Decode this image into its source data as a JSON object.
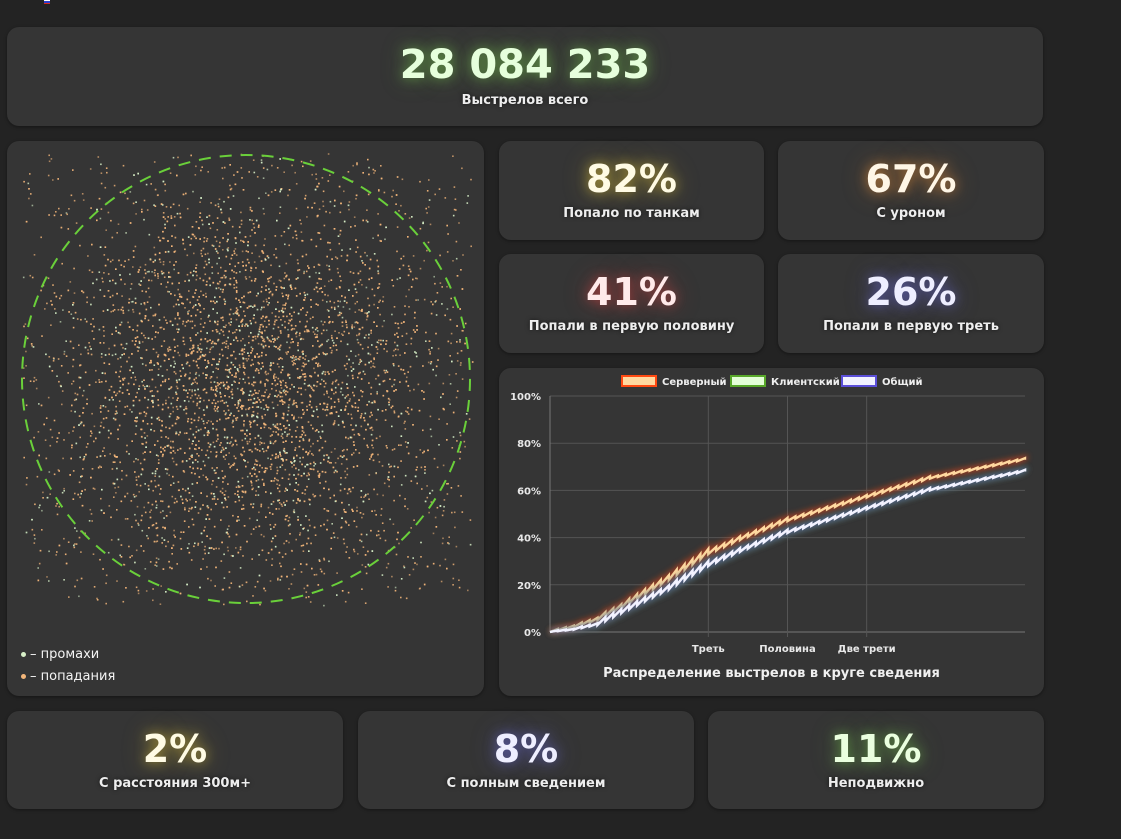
{
  "colors": {
    "background": "#232323",
    "card": "#353535",
    "circle": "#6ad03a",
    "miss": "#d8f0c8",
    "hit": "#f3b67a",
    "server_line": "#ffd9a0",
    "server_border": "#ff4a12",
    "client_line": "#e4ffd8",
    "client_border": "#58a82a",
    "total_line": "#f2f2ff",
    "total_border": "#5b4fd8"
  },
  "total": {
    "value": "28 084 233",
    "label": "Выстрелов всего"
  },
  "stats_top": [
    {
      "value": "82%",
      "label": "Попало по танкам",
      "glow": "yellow"
    },
    {
      "value": "67%",
      "label": "С уроном",
      "glow": "orange"
    },
    {
      "value": "41%",
      "label": "Попали в первую половину",
      "glow": "red"
    },
    {
      "value": "26%",
      "label": "Попали в первую треть",
      "glow": "blue"
    }
  ],
  "stats_bottom": [
    {
      "value": "2%",
      "label": "С расстояния 300м+",
      "glow": "yellow"
    },
    {
      "value": "8%",
      "label": "С полным сведением",
      "glow": "blue"
    },
    {
      "value": "11%",
      "label": "Неподвижно",
      "glow": "green"
    }
  ],
  "scatter": {
    "legend": [
      {
        "label": "– промахи",
        "kind": "miss"
      },
      {
        "label": "– попадания",
        "kind": "hit"
      }
    ]
  },
  "chart_data": {
    "type": "line",
    "title": "Распределение выстрелов в круге сведения",
    "legend": [
      "Серверный",
      "Клиентский",
      "Общий"
    ],
    "legend_position": "top",
    "x": [
      0,
      0.05,
      0.1,
      0.15,
      0.2,
      0.25,
      0.3333,
      0.4,
      0.45,
      0.5,
      0.55,
      0.6,
      0.6667,
      0.7,
      0.75,
      0.8,
      0.85,
      0.9,
      0.95,
      1.0
    ],
    "x_ticks": [
      {
        "value": 0.3333,
        "label": "Треть"
      },
      {
        "value": 0.5,
        "label": "Половина"
      },
      {
        "value": 0.6667,
        "label": "Две трети"
      }
    ],
    "y_ticks": [
      "0%",
      "20%",
      "40%",
      "60%",
      "80%",
      "100%"
    ],
    "ylim": [
      0,
      100
    ],
    "xlim": [
      0,
      1
    ],
    "grid": true,
    "series": [
      {
        "name": "Серверный",
        "values": [
          0,
          2,
          5,
          10,
          16,
          22,
          33,
          39,
          43,
          47,
          50,
          53,
          57,
          59,
          62,
          65,
          67,
          69,
          71,
          73
        ]
      },
      {
        "name": "Клиентский",
        "values": [
          0,
          1,
          3,
          8,
          13,
          18,
          28,
          34,
          38,
          42,
          45,
          48,
          52,
          54,
          57,
          60,
          62,
          64,
          66,
          68
        ]
      },
      {
        "name": "Общий",
        "values": [
          0,
          1,
          3,
          8,
          13,
          18,
          28,
          34,
          38,
          42,
          45,
          48,
          52,
          54,
          57,
          60,
          62,
          64,
          66,
          68
        ]
      }
    ]
  }
}
